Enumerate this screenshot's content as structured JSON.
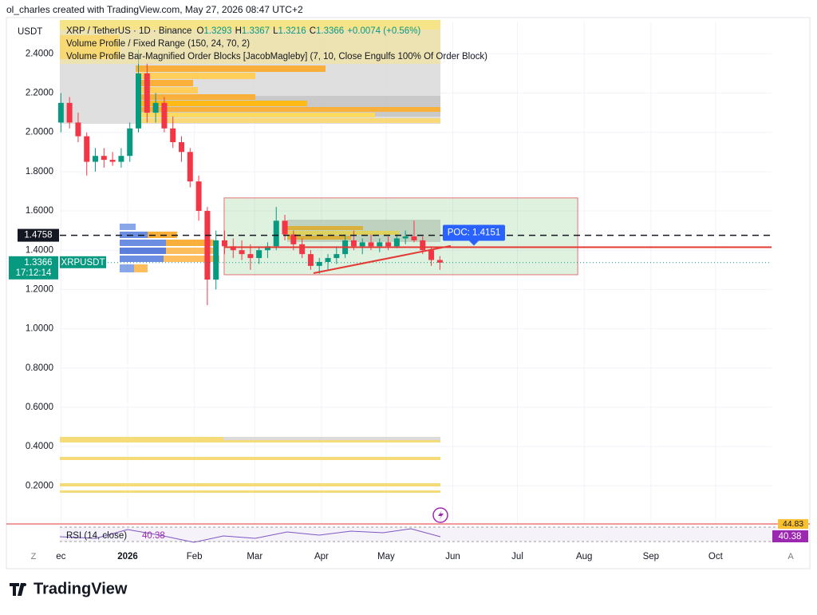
{
  "header": {
    "attribution": "ol_charles created with TradingView.com, May 27, 2026 08:47 UTC+2",
    "currency": "USDT",
    "symbol": "XRP / TetherUS · 1D · Binance",
    "ohlc": [
      {
        "label": "O",
        "value": 1.3293
      },
      {
        "label": "H",
        "value": 1.3367
      },
      {
        "label": "L",
        "value": 1.3216
      },
      {
        "label": "C",
        "value": 1.3366
      }
    ],
    "change": "+0.0074 (+0.56%)",
    "indicators": [
      "Volume Profile / Fixed Range (150, 24, 70, 2)",
      "Volume Profile Bar-Magnified Order Blocks [JacobMagleby] (7, 10, Close Engulfs 100% Of Order Block)"
    ]
  },
  "chart_data": {
    "type": "candlestick",
    "x": [
      -31,
      -27,
      -23,
      -19,
      -15,
      -11,
      -7,
      -3,
      1,
      5,
      9,
      13,
      17,
      21,
      25,
      29,
      33,
      37,
      41,
      45,
      49,
      53,
      57,
      61,
      65,
      69,
      73,
      77,
      81,
      85,
      89,
      93,
      97,
      101,
      105,
      109,
      113,
      117,
      121,
      125,
      129,
      133,
      137,
      141,
      145
    ],
    "open": [
      2.05,
      2.15,
      2.05,
      1.98,
      1.85,
      1.88,
      1.86,
      1.85,
      1.88,
      2.02,
      2.3,
      2.1,
      2.15,
      2.02,
      1.95,
      1.9,
      1.75,
      1.6,
      1.25,
      1.45,
      1.42,
      1.4,
      1.38,
      1.36,
      1.4,
      1.42,
      1.55,
      1.48,
      1.43,
      1.38,
      1.32,
      1.34,
      1.36,
      1.38,
      1.45,
      1.42,
      1.44,
      1.42,
      1.44,
      1.42,
      1.46,
      1.47,
      1.45,
      1.4,
      1.35
    ],
    "high": [
      2.2,
      2.18,
      2.1,
      2.0,
      1.92,
      1.92,
      1.9,
      1.92,
      2.05,
      2.42,
      2.35,
      2.2,
      2.18,
      2.08,
      1.98,
      1.92,
      1.78,
      1.62,
      1.5,
      1.5,
      1.46,
      1.45,
      1.43,
      1.42,
      1.44,
      1.62,
      1.58,
      1.5,
      1.46,
      1.4,
      1.36,
      1.38,
      1.42,
      1.48,
      1.5,
      1.46,
      1.48,
      1.46,
      1.47,
      1.48,
      1.5,
      1.55,
      1.47,
      1.42,
      1.37
    ],
    "low": [
      2.0,
      2.02,
      1.95,
      1.78,
      1.8,
      1.82,
      1.83,
      1.82,
      1.85,
      2.0,
      2.05,
      2.05,
      2.0,
      1.92,
      1.85,
      1.72,
      1.55,
      1.12,
      1.2,
      1.38,
      1.36,
      1.35,
      1.3,
      1.33,
      1.36,
      1.4,
      1.45,
      1.4,
      1.36,
      1.3,
      1.28,
      1.3,
      1.33,
      1.36,
      1.4,
      1.38,
      1.4,
      1.39,
      1.4,
      1.41,
      1.43,
      1.44,
      1.38,
      1.32,
      1.3
    ],
    "close": [
      2.15,
      2.05,
      1.98,
      1.85,
      1.88,
      1.86,
      1.85,
      1.88,
      2.02,
      2.3,
      2.1,
      2.15,
      2.02,
      1.95,
      1.9,
      1.75,
      1.6,
      1.25,
      1.45,
      1.42,
      1.4,
      1.38,
      1.36,
      1.4,
      1.42,
      1.55,
      1.48,
      1.43,
      1.38,
      1.32,
      1.34,
      1.36,
      1.38,
      1.45,
      1.42,
      1.44,
      1.42,
      1.44,
      1.42,
      1.46,
      1.47,
      1.45,
      1.4,
      1.35,
      1.3366
    ],
    "up_color": "#089981",
    "down_color": "#f23645",
    "xlim": [
      -31.5,
      299
    ],
    "xticks": [
      {
        "value": -31,
        "label": "ec"
      },
      {
        "value": 0,
        "label": "2026"
      },
      {
        "value": 31,
        "label": "Feb"
      },
      {
        "value": 59,
        "label": "Mar"
      },
      {
        "value": 90,
        "label": "Apr"
      },
      {
        "value": 120,
        "label": "May"
      },
      {
        "value": 151,
        "label": "Jun"
      },
      {
        "value": 181,
        "label": "Jul"
      },
      {
        "value": 212,
        "label": "Aug"
      },
      {
        "value": 243,
        "label": "Sep"
      },
      {
        "value": 273,
        "label": "Oct"
      }
    ],
    "ylim": [
      0.01,
      2.56
    ],
    "yticks": [
      {
        "value": 0.2,
        "label": "0.2000"
      },
      {
        "value": 0.4,
        "label": "0.4000"
      },
      {
        "value": 0.6,
        "label": "0.6000"
      },
      {
        "value": 0.8,
        "label": "0.8000"
      },
      {
        "value": 1.0,
        "label": "1.0000"
      },
      {
        "value": 1.2,
        "label": "1.2000"
      },
      {
        "value": 1.4,
        "label": "1.4000"
      },
      {
        "value": 1.6,
        "label": "1.6000"
      },
      {
        "value": 1.8,
        "label": "1.8000"
      },
      {
        "value": 2.0,
        "label": "2.0000"
      },
      {
        "value": 2.2,
        "label": "2.2000"
      },
      {
        "value": 2.4,
        "label": "2.4000"
      }
    ],
    "grid": true,
    "symbol_label": "XRPUSDT",
    "last_price": 1.3366,
    "countdown": "17:12:14",
    "marked_level": 1.4758,
    "poc_level": 1.4151,
    "poc_label": "POC: 1.4151",
    "box": {
      "x": [
        44.8,
        209
      ],
      "y": [
        1.275,
        1.666
      ]
    },
    "trendline": {
      "x": [
        86.3,
        150
      ],
      "y": [
        1.283,
        1.422
      ]
    },
    "rsi": {
      "title": "RSI (14, close)",
      "value": 40.38,
      "ma": 44.83
    }
  },
  "footer": {
    "logo": "TradingView",
    "left_button": "Z",
    "right_button": "A"
  }
}
